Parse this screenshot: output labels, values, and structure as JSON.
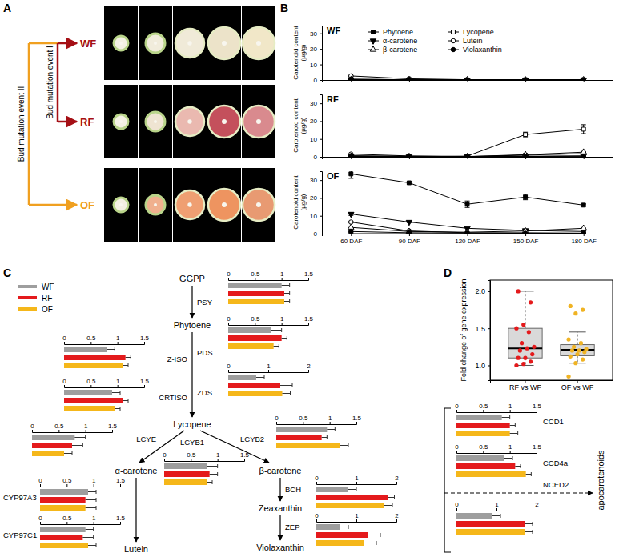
{
  "panel_labels": [
    "A",
    "B",
    "C",
    "D"
  ],
  "panel_a": {
    "rows": [
      "WF",
      "RF",
      "OF"
    ],
    "events": [
      "Bud mutation event I",
      "Bud mutation event II"
    ]
  },
  "chart_data": [
    {
      "type": "line",
      "categories": [
        "60 DAF",
        "90 DAF",
        "120 DAF",
        "150 DAF",
        "180 DAF"
      ],
      "y_label": "Carotenoid content (µg/g)",
      "ylim": [
        0,
        35
      ],
      "yticks": [
        0,
        10,
        20,
        30
      ],
      "legend": "top",
      "series": [
        {
          "name": "Phytoene",
          "marker": "square",
          "color": "#000000"
        },
        {
          "name": "Lycopene",
          "marker": "square-open",
          "color": "#000000"
        },
        {
          "name": "α-carotene",
          "marker": "triangle-down",
          "color": "#000000"
        },
        {
          "name": "Lutein",
          "marker": "circle-open",
          "color": "#000000"
        },
        {
          "name": "β-carotene",
          "marker": "triangle-up-open",
          "color": "#000000"
        },
        {
          "name": "Violaxanthin",
          "marker": "circle",
          "color": "#000000"
        }
      ],
      "panels": [
        {
          "title": "WF",
          "values": [
            [
              0.4,
              0.2,
              0.1,
              0.1,
              0.1
            ],
            [
              0,
              0,
              0,
              0.1,
              0.1
            ],
            [
              0.3,
              0.1,
              0,
              0,
              0
            ],
            [
              2.6,
              0.8,
              0.2,
              0.2,
              0.2
            ],
            [
              0.2,
              0.1,
              0.1,
              0.1,
              0.1
            ],
            [
              0.5,
              0.2,
              0.1,
              0.1,
              0.1
            ]
          ],
          "errors": [
            [
              null,
              null,
              null,
              null,
              null
            ],
            [
              null,
              null,
              null,
              null,
              null
            ],
            [
              null,
              null,
              null,
              null,
              null
            ],
            [
              0.3,
              null,
              null,
              null,
              null
            ],
            [
              null,
              null,
              null,
              null,
              null
            ],
            [
              null,
              null,
              null,
              null,
              null
            ]
          ]
        },
        {
          "title": "RF",
          "values": [
            [
              0.6,
              0.3,
              0.2,
              0.9,
              1.8
            ],
            [
              0,
              0,
              0.4,
              12.5,
              15.5
            ],
            [
              0.3,
              0.1,
              0,
              0.2,
              0.4
            ],
            [
              1.5,
              0.5,
              0.2,
              0.3,
              0.5
            ],
            [
              0.3,
              0.1,
              0.1,
              1.2,
              2.6
            ],
            [
              0.4,
              0.2,
              0.1,
              0.1,
              0.1
            ]
          ],
          "errors": [
            [
              null,
              null,
              null,
              null,
              0.3
            ],
            [
              null,
              null,
              null,
              1.3,
              2.5
            ],
            [
              null,
              null,
              null,
              null,
              null
            ],
            [
              null,
              null,
              null,
              null,
              null
            ],
            [
              null,
              null,
              null,
              null,
              0.4
            ],
            [
              null,
              null,
              null,
              null,
              null
            ]
          ]
        },
        {
          "title": "OF",
          "values": [
            [
              33.5,
              28.5,
              16.5,
              20.5,
              16
            ],
            [
              0,
              0,
              0,
              0,
              0
            ],
            [
              11,
              6.5,
              3,
              1.8,
              1.2
            ],
            [
              6.5,
              1.5,
              0.5,
              0.5,
              0.3
            ],
            [
              3.5,
              1.2,
              0.8,
              1.5,
              3
            ],
            [
              1.2,
              0.5,
              0.3,
              0.2,
              0.2
            ]
          ],
          "errors": [
            [
              2.5,
              0.6,
              1.8,
              1.5,
              0.6
            ],
            [
              null,
              null,
              null,
              null,
              null
            ],
            [
              0.8,
              0.3,
              null,
              null,
              null
            ],
            [
              0.4,
              null,
              null,
              null,
              null
            ],
            [
              null,
              null,
              null,
              null,
              0.3
            ],
            [
              null,
              null,
              null,
              null,
              null
            ]
          ]
        }
      ]
    },
    {
      "type": "bar",
      "orientation": "horizontal",
      "series": [
        {
          "name": "WF",
          "color": "#9e9e9e"
        },
        {
          "name": "RF",
          "color": "#e41a1c"
        },
        {
          "name": "OF",
          "color": "#f5b71a"
        }
      ],
      "metabolites": [
        "GGPP",
        "Phytoene",
        "Lycopene",
        "α-carotene",
        "β-carotene",
        "Lutein",
        "Zeaxanthin",
        "Violaxanthin",
        "apocarotenoids"
      ],
      "groups": [
        {
          "gene": "PSY",
          "xlim": [
            0,
            1.5
          ],
          "xticks": [
            0,
            0.5,
            1,
            1.5
          ],
          "values": [
            1.0,
            1.05,
            1.05
          ],
          "errors": [
            0.15,
            0.1,
            0.1
          ]
        },
        {
          "gene": "PDS",
          "xlim": [
            0,
            1.5
          ],
          "xticks": [
            0,
            0.5,
            1,
            1.5
          ],
          "values": [
            0.8,
            1.0,
            0.85
          ],
          "errors": [
            0.2,
            0.1,
            0.1
          ]
        },
        {
          "gene": "Z-ISO",
          "xlim": [
            0,
            1.5
          ],
          "xticks": [
            0,
            0.5,
            1,
            1.5
          ],
          "values": [
            0.8,
            1.15,
            1.1
          ],
          "errors": [
            0.15,
            0.1,
            0.1
          ]
        },
        {
          "gene": "ZDS",
          "xlim": [
            0,
            2
          ],
          "xticks": [
            0,
            1,
            2
          ],
          "values": [
            0.7,
            1.3,
            1.35
          ],
          "errors": [
            0.2,
            0.3,
            0.2
          ]
        },
        {
          "gene": "CRTISO",
          "xlim": [
            0,
            1.5
          ],
          "xticks": [
            0,
            0.5,
            1,
            1.5
          ],
          "values": [
            0.9,
            1.1,
            0.95
          ],
          "errors": [
            0.15,
            0.1,
            0.1
          ]
        },
        {
          "gene": "LCYE",
          "xlim": [
            0,
            1.5
          ],
          "xticks": [
            0,
            0.5,
            1,
            1.5
          ],
          "values": [
            0.8,
            0.75,
            0.6
          ],
          "errors": [
            0.2,
            0.2,
            0.15
          ]
        },
        {
          "gene": "LCYB2",
          "xlim": [
            0,
            1.5
          ],
          "xticks": [
            0,
            0.5,
            1,
            1.5
          ],
          "values": [
            0.95,
            0.85,
            1.2
          ],
          "errors": [
            0.15,
            0.1,
            0.15
          ]
        },
        {
          "gene": "LCYB1",
          "xlim": [
            0,
            1.5
          ],
          "xticks": [
            0,
            0.5,
            1,
            1.5
          ],
          "values": [
            0.8,
            0.85,
            0.8
          ],
          "errors": [
            0.2,
            0.15,
            0.1
          ]
        },
        {
          "gene": "CYP97A3",
          "xlim": [
            0,
            1.5
          ],
          "xticks": [
            0,
            0.5,
            1,
            1.5
          ],
          "values": [
            0.9,
            0.85,
            0.85
          ],
          "errors": [
            0.15,
            0.2,
            0.2
          ]
        },
        {
          "gene": "CYP97C1",
          "xlim": [
            0,
            1.5
          ],
          "xticks": [
            0,
            0.5,
            1,
            1.5
          ],
          "values": [
            0.85,
            0.8,
            0.9
          ],
          "errors": [
            0.15,
            0.2,
            0.15
          ]
        },
        {
          "gene": "BCH",
          "xlim": [
            0,
            2
          ],
          "xticks": [
            0,
            1,
            2
          ],
          "values": [
            0.8,
            1.8,
            1.7
          ],
          "errors": [
            0.2,
            0.15,
            0.2
          ]
        },
        {
          "gene": "ZEP",
          "xlim": [
            0,
            2
          ],
          "xticks": [
            0,
            1,
            2
          ],
          "values": [
            0.6,
            1.3,
            1.2
          ],
          "errors": [
            0.2,
            0.3,
            0.3
          ]
        },
        {
          "gene": "CCD1",
          "xlim": [
            0,
            1.5
          ],
          "xticks": [
            0,
            0.5,
            1,
            1.5
          ],
          "values": [
            0.85,
            1.0,
            1.0
          ],
          "errors": [
            0.15,
            0.1,
            0.15
          ]
        },
        {
          "gene": "CCD4a",
          "xlim": [
            0,
            1.5
          ],
          "xticks": [
            0,
            0.5,
            1,
            1.5
          ],
          "values": [
            0.9,
            1.1,
            1.3
          ],
          "errors": [
            0.15,
            0.1,
            0.1
          ]
        },
        {
          "gene": "NCED2",
          "xlim": [
            0,
            2
          ],
          "xticks": [
            0,
            1,
            2
          ],
          "values": [
            0.9,
            1.7,
            1.7
          ],
          "errors": [
            0.2,
            0.2,
            0.2
          ]
        }
      ]
    },
    {
      "type": "box",
      "categories": [
        "RF vs WF",
        "OF vs WF"
      ],
      "y_label": "Fold change of gene expression",
      "ylim": [
        0.8,
        2.15
      ],
      "yticks": [
        {
          "value": 1,
          "label": "1.0"
        },
        1.5,
        {
          "value": 2,
          "label": "2.0"
        }
      ],
      "boxes": [
        {
          "min": 1.0,
          "q1": 1.1,
          "median": 1.23,
          "q3": 1.5,
          "max": 2.0
        },
        {
          "min": 1.03,
          "q1": 1.13,
          "median": 1.21,
          "q3": 1.28,
          "max": 1.45
        }
      ],
      "points": [
        [
          1.0,
          1.02,
          1.05,
          1.1,
          1.1,
          1.15,
          1.2,
          1.23,
          1.25,
          1.3,
          1.45,
          1.5,
          1.55,
          1.85,
          2.0
        ],
        [
          0.85,
          1.03,
          1.08,
          1.12,
          1.15,
          1.18,
          1.2,
          1.2,
          1.22,
          1.25,
          1.3,
          1.35,
          1.7,
          1.75,
          1.8
        ]
      ],
      "colors": [
        "#e41a1c",
        "#f0b323"
      ]
    }
  ]
}
